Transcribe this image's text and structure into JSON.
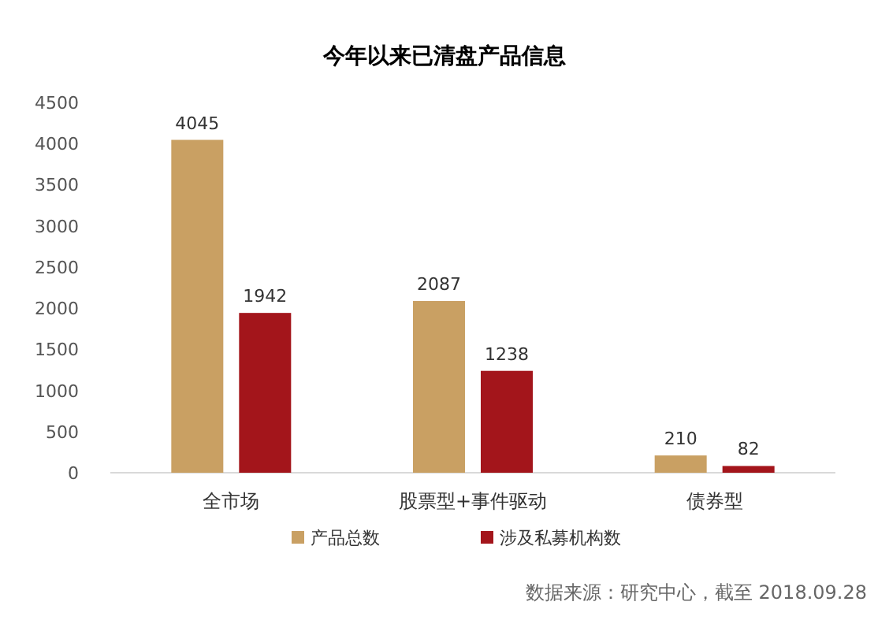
{
  "chart_data": {
    "type": "bar",
    "title": "今年以来已清盘产品信息",
    "categories": [
      "全市场",
      "股票型+事件驱动",
      "债券型"
    ],
    "series": [
      {
        "name": "产品总数",
        "color": "#c9a063",
        "values": [
          4045,
          2087,
          210
        ]
      },
      {
        "name": "涉及私募机构数",
        "color": "#a3151b",
        "values": [
          1942,
          1238,
          82
        ]
      }
    ],
    "ylim": [
      0,
      4500
    ],
    "yticks": [
      0,
      500,
      1000,
      1500,
      2000,
      2500,
      3000,
      3500,
      4000,
      4500
    ],
    "grid": false,
    "data_labels": true,
    "legend": "bottom",
    "annotations": [
      "数据来源：研究中心，截至 2018.09.28"
    ]
  }
}
